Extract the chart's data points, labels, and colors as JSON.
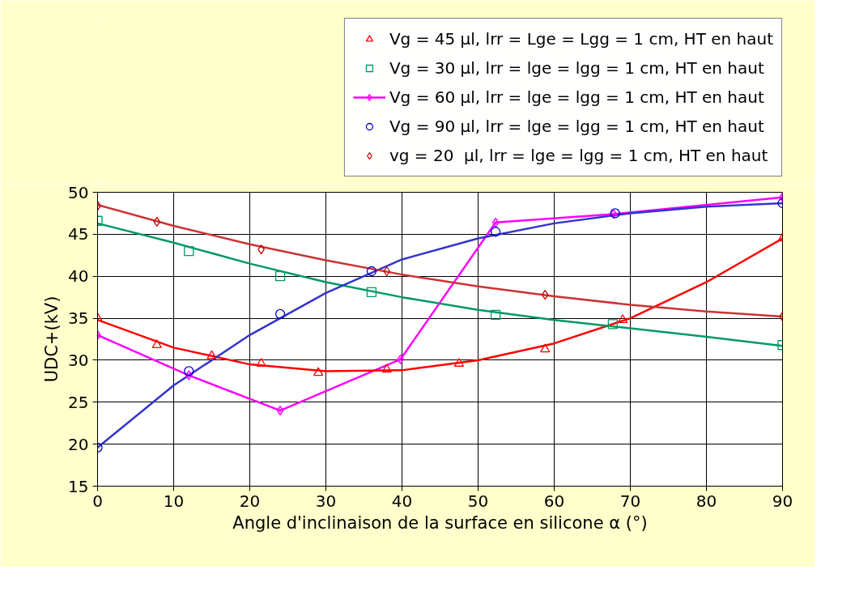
{
  "chart_data": {
    "type": "scatter",
    "xlabel": "Angle d'inclinaison de la surface en silicone α (°)",
    "ylabel": "UDC+(kV)",
    "xlim": [
      0,
      90
    ],
    "xticks": [
      0,
      10,
      20,
      30,
      40,
      50,
      60,
      70,
      80,
      90
    ],
    "ylim": [
      15,
      50
    ],
    "yticks": [
      15,
      20,
      25,
      30,
      35,
      40,
      45,
      50
    ],
    "grid": true,
    "legend": "top",
    "series": [
      {
        "name": "Vg = 45 µl, lrr = Lge = Lgg = 1 cm, HT en haut",
        "type": "scatter",
        "marker": "triangle",
        "color": "#ff0000",
        "x": [
          0,
          7.8,
          15,
          21.5,
          29,
          38,
          47.5,
          58.8,
          69,
          90
        ],
        "values": [
          35,
          31.8,
          30.5,
          29.6,
          28.5,
          28.9,
          29.6,
          31.3,
          34.8,
          44.5
        ]
      },
      {
        "name": "Vg = 30 µl, lrr = lge = lgg = 1 cm, HT en haut",
        "type": "scatter",
        "marker": "square",
        "color": "#009966",
        "x": [
          0,
          12,
          24,
          36,
          52.3,
          67.7,
          90
        ],
        "values": [
          46.6,
          43,
          40,
          38.1,
          35.4,
          34.3,
          31.8
        ]
      },
      {
        "name": "Vg = 60 µl, lrr = lge = lgg = 1 cm, HT en haut",
        "type": "line",
        "marker": "diamond",
        "line_style": "solid",
        "color": "#ff00ff",
        "x": [
          0,
          12,
          24,
          39.8,
          52.3,
          67.8,
          90
        ],
        "values": [
          33,
          28.2,
          24,
          30.1,
          46.4,
          47.4,
          49.4
        ]
      },
      {
        "name": "Vg = 90 µl, lrr = lge = lgg = 1 cm, HT en haut",
        "type": "scatter",
        "marker": "circle",
        "color": "#0000cc",
        "x": [
          0,
          12,
          24,
          36,
          52.3,
          68,
          90
        ],
        "values": [
          19.6,
          28.7,
          35.5,
          40.6,
          45.3,
          47.5,
          48.7
        ]
      },
      {
        "name": "vg = 20  µl, lrr = lge = lgg = 1 cm, HT en haut",
        "type": "scatter",
        "marker": "diamond",
        "color": "#cc0000",
        "x": [
          0,
          7.8,
          21.5,
          38,
          58.8,
          90
        ],
        "values": [
          48.4,
          46.5,
          43.2,
          40.6,
          37.8,
          35.2
        ]
      },
      {
        "type": "line",
        "marker": "none",
        "line_style": "solid",
        "color": "#ff0000",
        "x": [
          0,
          10,
          20,
          30,
          40,
          50,
          60,
          70,
          80,
          90
        ],
        "values": [
          34.8,
          31.5,
          29.5,
          28.7,
          28.8,
          30,
          32,
          35,
          39.3,
          44.5
        ]
      },
      {
        "type": "line",
        "marker": "none",
        "line_style": "solid",
        "color": "#009966",
        "x": [
          0,
          10,
          20,
          30,
          40,
          50,
          60,
          70,
          80,
          90
        ],
        "values": [
          46.3,
          44,
          41.5,
          39.3,
          37.5,
          36,
          34.8,
          33.8,
          32.8,
          31.7
        ]
      },
      {
        "type": "line",
        "marker": "none",
        "line_style": "solid",
        "color": "#3333cc",
        "x": [
          0,
          10,
          20,
          30,
          40,
          50,
          60,
          70,
          80,
          90
        ],
        "values": [
          19.6,
          27,
          33,
          38,
          42,
          44.5,
          46.3,
          47.5,
          48.3,
          48.7
        ]
      },
      {
        "type": "line",
        "marker": "none",
        "line_style": "solid",
        "color": "#cc3333",
        "x": [
          0,
          10,
          20,
          30,
          40,
          50,
          60,
          70,
          80,
          90
        ],
        "values": [
          48.5,
          46,
          43.8,
          41.9,
          40.2,
          38.8,
          37.6,
          36.6,
          35.8,
          35.2
        ]
      }
    ]
  }
}
